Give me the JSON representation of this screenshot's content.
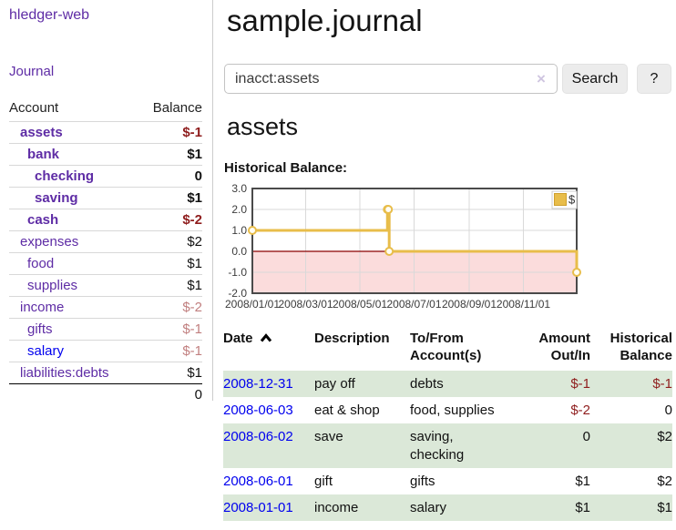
{
  "app": {
    "brand": "hledger-web"
  },
  "sidebar": {
    "journal_label": "Journal",
    "table": {
      "account_header": "Account",
      "balance_header": "Balance",
      "accounts": [
        {
          "name": "assets",
          "depth": 0,
          "bold": true,
          "balance": "$-1",
          "balance_class": "neg-strong",
          "link": "purple"
        },
        {
          "name": "bank",
          "depth": 1,
          "bold": true,
          "balance": "$1",
          "balance_class": "pos",
          "link": "purple"
        },
        {
          "name": "checking",
          "depth": 2,
          "bold": true,
          "balance": "0",
          "balance_class": "pos",
          "link": "purple"
        },
        {
          "name": "saving",
          "depth": 2,
          "bold": true,
          "balance": "$1",
          "balance_class": "pos",
          "link": "purple"
        },
        {
          "name": "cash",
          "depth": 1,
          "bold": true,
          "balance": "$-2",
          "balance_class": "neg-strong",
          "link": "purple"
        },
        {
          "name": "expenses",
          "depth": 0,
          "bold": false,
          "balance": "$2",
          "balance_class": "pos",
          "link": "purple"
        },
        {
          "name": "food",
          "depth": 1,
          "bold": false,
          "balance": "$1",
          "balance_class": "pos",
          "link": "purple"
        },
        {
          "name": "supplies",
          "depth": 1,
          "bold": false,
          "balance": "$1",
          "balance_class": "pos",
          "link": "purple"
        },
        {
          "name": "income",
          "depth": 0,
          "bold": false,
          "balance": "$-2",
          "balance_class": "neg-soft",
          "link": "purple"
        },
        {
          "name": "gifts",
          "depth": 1,
          "bold": false,
          "balance": "$-1",
          "balance_class": "neg-soft",
          "link": "purple"
        },
        {
          "name": "salary",
          "depth": 1,
          "bold": false,
          "balance": "$-1",
          "balance_class": "neg-soft",
          "link": "blue"
        },
        {
          "name": "liabilities:debts",
          "depth": 0,
          "bold": false,
          "balance": "$1",
          "balance_class": "pos",
          "link": "purple"
        }
      ],
      "total": "0"
    }
  },
  "main": {
    "title": "sample.journal",
    "search": {
      "value": "inacct:assets",
      "clear_icon": "×",
      "button": "Search",
      "help_button": "?"
    },
    "account_heading": "assets",
    "chart_label": "Historical Balance:"
  },
  "chart_data": {
    "type": "line",
    "title": "Historical Balance:",
    "xlim": [
      "2008-01-01",
      "2008-12-31"
    ],
    "ylim": [
      -2,
      3
    ],
    "y_ticks": [
      3,
      2,
      1,
      0,
      -1,
      -2
    ],
    "x_ticks": [
      {
        "date": "2008-01-01",
        "label": "2008/01/01"
      },
      {
        "date": "2008-03-01",
        "label": "2008/03/01"
      },
      {
        "date": "2008-05-01",
        "label": "2008/05/01"
      },
      {
        "date": "2008-07-01",
        "label": "2008/07/01"
      },
      {
        "date": "2008-09-01",
        "label": "2008/09/01"
      },
      {
        "date": "2008-11-01",
        "label": "2008/11/01"
      }
    ],
    "series": [
      {
        "name": "$",
        "color": "#e8bd4a",
        "step": true,
        "points": [
          {
            "date": "2008-01-01",
            "value": 1
          },
          {
            "date": "2008-06-01",
            "value": 2
          },
          {
            "date": "2008-06-02",
            "value": 2
          },
          {
            "date": "2008-06-03",
            "value": 0
          },
          {
            "date": "2008-12-31",
            "value": -1
          }
        ]
      }
    ],
    "legend": {
      "label": "$",
      "position": "top-right"
    },
    "colors": {
      "below_zero_fill": "#fbdcdc",
      "zero_line": "#8b0000",
      "grid": "#d9d9d9",
      "border": "#4a4a4a",
      "tick_text": "#3c3c3c"
    },
    "grid": true
  },
  "register": {
    "headers": {
      "date": "Date",
      "description": "Description",
      "account": "To/From Account(s)",
      "amount": "Amount Out/In",
      "balance": "Historical Balance"
    },
    "rows": [
      {
        "date": "2008-12-31",
        "description": "pay off",
        "accounts": "debts",
        "amount": "$-1",
        "balance": "$-1"
      },
      {
        "date": "2008-06-03",
        "description": "eat & shop",
        "accounts": "food, supplies",
        "amount": "$-2",
        "balance": "0"
      },
      {
        "date": "2008-06-02",
        "description": "save",
        "accounts": "saving, checking",
        "amount": "0",
        "balance": "$2"
      },
      {
        "date": "2008-06-01",
        "description": "gift",
        "accounts": "gifts",
        "amount": "$1",
        "balance": "$2"
      },
      {
        "date": "2008-01-01",
        "description": "income",
        "accounts": "salary",
        "amount": "$1",
        "balance": "$1"
      }
    ]
  },
  "colors": {
    "link_purple": "#5e2ca5",
    "link_blue": "#0000ee",
    "negative_strong": "#8f1d1d",
    "negative_soft": "#c17f7f",
    "row_stripe_green": "#dbe8d8",
    "chart_line_gold": "#e8bd4a",
    "chart_negative_pink": "#fbdcdc",
    "chart_zero_line_red": "#8b0000"
  }
}
